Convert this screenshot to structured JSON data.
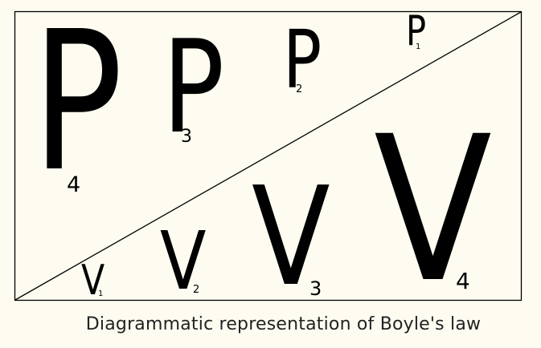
{
  "colors": {
    "background": "#fefcf1",
    "ink": "#000000",
    "caption": "#222222"
  },
  "pressure_labels": [
    {
      "letter": "P",
      "subscript": "4"
    },
    {
      "letter": "P",
      "subscript": "3"
    },
    {
      "letter": "P",
      "subscript": "2"
    },
    {
      "letter": "P",
      "subscript": "1"
    }
  ],
  "volume_labels": [
    {
      "letter": "V",
      "subscript": "1"
    },
    {
      "letter": "V",
      "subscript": "2"
    },
    {
      "letter": "V",
      "subscript": "3"
    },
    {
      "letter": "V",
      "subscript": "4"
    }
  ],
  "caption": "Diagrammatic representation of Boyle's law"
}
